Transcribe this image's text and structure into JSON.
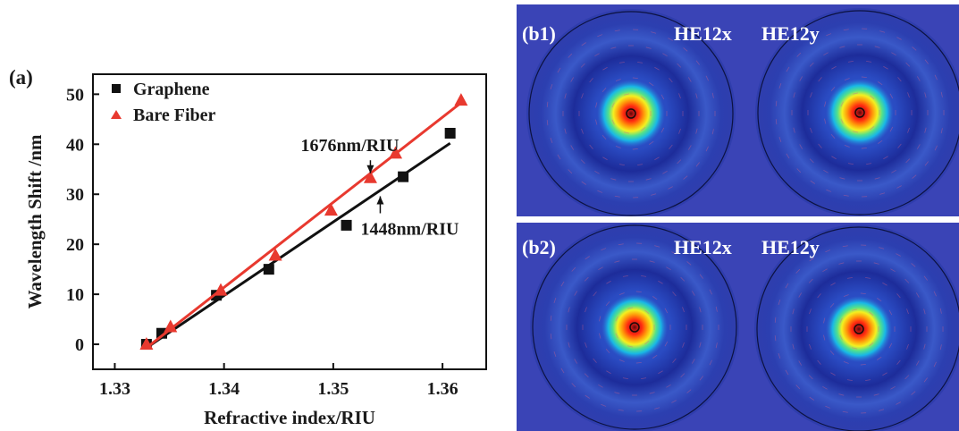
{
  "chart_data": {
    "type": "scatter",
    "panel_label": "(a)",
    "xlabel": "Refractive index/RIU",
    "ylabel": "Wavelength Shift /nm",
    "xlim": [
      1.328,
      1.364
    ],
    "ylim": [
      -5,
      54
    ],
    "x_ticks": [
      1.33,
      1.34,
      1.35,
      1.36
    ],
    "x_tick_labels": [
      "1.33",
      "1.34",
      "1.35",
      "1.36"
    ],
    "y_ticks": [
      0,
      10,
      20,
      30,
      40,
      50
    ],
    "y_tick_labels": [
      "0",
      "10",
      "20",
      "30",
      "40",
      "50"
    ],
    "grid": false,
    "legend_position": "top-left",
    "series": [
      {
        "name": "Graphene",
        "marker": "square",
        "color": "#111111",
        "x": [
          1.3329,
          1.3343,
          1.3393,
          1.3441,
          1.3512,
          1.3564,
          1.3607
        ],
        "y": [
          0.0,
          2.2,
          9.8,
          15.0,
          23.8,
          33.5,
          42.2
        ],
        "fit": {
          "x": [
            1.3329,
            1.3607
          ],
          "y": [
            -0.7,
            40.2
          ]
        }
      },
      {
        "name": "Bare Fiber",
        "marker": "triangle",
        "color": "#e8392f",
        "x": [
          1.3329,
          1.3351,
          1.3397,
          1.3447,
          1.3498,
          1.3534,
          1.3557,
          1.3617
        ],
        "y": [
          0.0,
          3.5,
          10.8,
          17.8,
          26.8,
          33.3,
          38.2,
          48.8
        ],
        "fit": {
          "x": [
            1.3329,
            1.3617
          ],
          "y": [
            -0.7,
            48.3
          ]
        }
      }
    ],
    "annotations": [
      {
        "text": "1676nm/RIU",
        "x": 1.3534,
        "y": 36.8,
        "arrow_to": [
          1.3534,
          34.2
        ]
      },
      {
        "text": "1448nm/RIU",
        "x": 1.3543,
        "y": 26.2,
        "arrow_to": [
          1.3543,
          29.6
        ]
      }
    ]
  },
  "panels": [
    {
      "label": "(b1)",
      "modes": [
        "HE12x",
        "HE12y"
      ]
    },
    {
      "label": "(b2)",
      "modes": [
        "HE12x",
        "HE12y"
      ]
    }
  ]
}
